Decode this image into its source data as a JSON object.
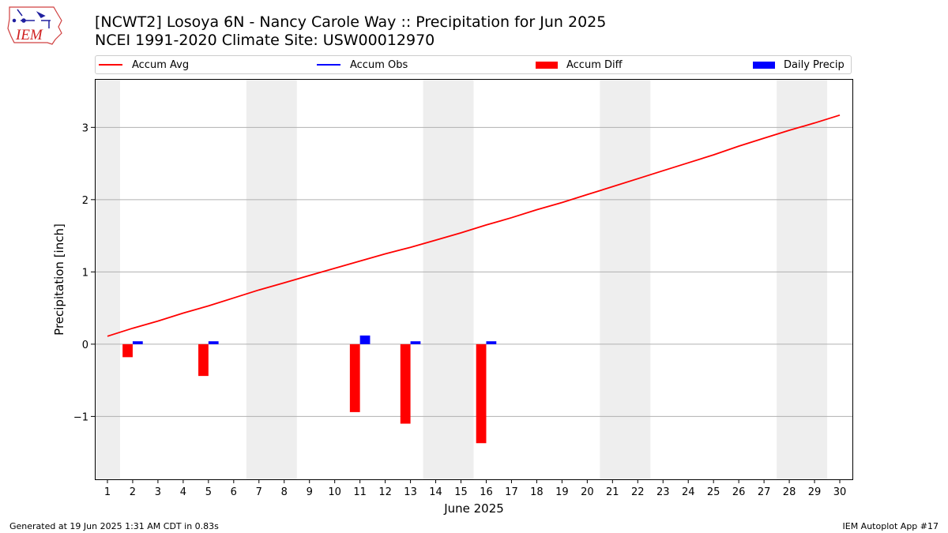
{
  "header": {
    "title_line1": "[NCWT2] Losoya 6N - Nancy Carole Way :: Precipitation for Jun 2025",
    "title_line2": "NCEI 1991-2020 Climate Site: USW00012970"
  },
  "logo": {
    "text": "IEM"
  },
  "legend": {
    "items": [
      {
        "label": "Accum Avg",
        "color": "#ff0000",
        "kind": "line"
      },
      {
        "label": "Accum Obs",
        "color": "#0000ff",
        "kind": "line"
      },
      {
        "label": "Accum Diff",
        "color": "#ff0000",
        "kind": "box"
      },
      {
        "label": "Daily Precip",
        "color": "#0000ff",
        "kind": "box"
      }
    ]
  },
  "footer": {
    "left": "Generated at 19 Jun 2025 1:31 AM CDT in 0.83s",
    "right": "IEM Autoplot App #17"
  },
  "chart_data": {
    "type": "bar",
    "xlabel": "June 2025",
    "ylabel": "Precipitation [inch]",
    "xlim": [
      0.5,
      30.5
    ],
    "ylim": [
      -1.87,
      3.67
    ],
    "x_ticks": [
      1,
      2,
      3,
      4,
      5,
      6,
      7,
      8,
      9,
      10,
      11,
      12,
      13,
      14,
      15,
      16,
      17,
      18,
      19,
      20,
      21,
      22,
      23,
      24,
      25,
      26,
      27,
      28,
      29,
      30
    ],
    "y_ticks": [
      -1,
      0,
      1,
      2,
      3
    ],
    "y_tick_labels": [
      "−1",
      "0",
      "1",
      "2",
      "3"
    ],
    "grid": "horizontal",
    "legend_position": "top",
    "weekend_bands": [
      [
        0.5,
        1.5
      ],
      [
        6.5,
        8.5
      ],
      [
        13.5,
        15.5
      ],
      [
        20.5,
        22.5
      ],
      [
        27.5,
        29.5
      ]
    ],
    "weekend_band_color": "#eeeeee",
    "series": [
      {
        "name": "Accum Avg",
        "type": "line",
        "color": "#ff0000",
        "x": [
          1,
          2,
          3,
          4,
          5,
          6,
          7,
          8,
          9,
          10,
          11,
          12,
          13,
          14,
          15,
          16,
          17,
          18,
          19,
          20,
          21,
          22,
          23,
          24,
          25,
          26,
          27,
          28,
          29,
          30
        ],
        "values": [
          0.11,
          0.22,
          0.32,
          0.43,
          0.53,
          0.64,
          0.75,
          0.85,
          0.95,
          1.05,
          1.15,
          1.25,
          1.34,
          1.44,
          1.54,
          1.65,
          1.75,
          1.86,
          1.96,
          2.07,
          2.18,
          2.29,
          2.4,
          2.51,
          2.62,
          2.74,
          2.85,
          2.96,
          3.06,
          3.17
        ]
      },
      {
        "name": "Accum Diff",
        "type": "bar",
        "color": "#ff0000",
        "x": [
          2,
          5,
          11,
          13,
          16
        ],
        "values": [
          -0.18,
          -0.44,
          -0.94,
          -1.1,
          -1.37
        ]
      },
      {
        "name": "Daily Precip",
        "type": "bar",
        "color": "#0000ff",
        "x": [
          2,
          5,
          11,
          13,
          16
        ],
        "values": [
          0.04,
          0.04,
          0.12,
          0.04,
          0.04
        ]
      }
    ]
  }
}
